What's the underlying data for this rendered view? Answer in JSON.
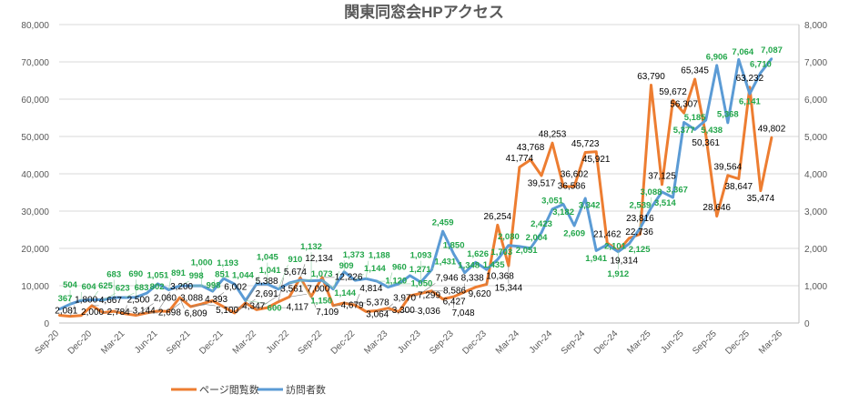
{
  "chart_data": {
    "type": "line",
    "title": "関東同窓会HPアクセス",
    "x": [
      "Sep-20",
      "Oct-20",
      "Nov-20",
      "Dec-20",
      "Jan-21",
      "Feb-21",
      "Mar-21",
      "Apr-21",
      "May-21",
      "Jun-21",
      "Jul-21",
      "Aug-21",
      "Sep-21",
      "Oct-21",
      "Nov-21",
      "Dec-21",
      "Jan-22",
      "Feb-22",
      "Mar-22",
      "Apr-22",
      "May-22",
      "Jun-22",
      "Jul-22",
      "Aug-22",
      "Sep-22",
      "Oct-22",
      "Nov-22",
      "Dec-22",
      "Jan-23",
      "Feb-23",
      "Mar-23",
      "Apr-23",
      "May-23",
      "Jun-23",
      "Jul-23",
      "Aug-23",
      "Sep-23",
      "Oct-23",
      "Nov-23",
      "Dec-23",
      "Jan-24",
      "Feb-24",
      "Mar-24",
      "Apr-24",
      "May-24",
      "Jun-24",
      "Jul-24",
      "Aug-24",
      "Sep-24",
      "Oct-24",
      "Nov-24",
      "Dec-24",
      "Jan-25",
      "Feb-25",
      "Mar-25",
      "Apr-25",
      "May-25",
      "Jun-25",
      "Jul-25",
      "Aug-25",
      "Sep-25",
      "Oct-25",
      "Nov-25",
      "Dec-25",
      "Jan-26",
      "Feb-26"
    ],
    "x_tick_labels": [
      "Sep-20",
      "Dec-20",
      "Mar-21",
      "Jun-21",
      "Sep-21",
      "Dec-21",
      "Mar-22",
      "Jun-22",
      "Sep-22",
      "Dec-22",
      "Mar-23",
      "Jun-23",
      "Sep-23",
      "Dec-23",
      "Mar-24",
      "Jun-24",
      "Sep-24",
      "Dec-24",
      "Mar-25",
      "Jun-25",
      "Sep-25",
      "Dec-25",
      "Mar-26"
    ],
    "y_left": {
      "range": [
        0,
        80000
      ],
      "ticks": [
        "0",
        "10,000",
        "20,000",
        "30,000",
        "40,000",
        "50,000",
        "60,000",
        "70,000",
        "80,000"
      ]
    },
    "y_right": {
      "range": [
        0,
        8000
      ],
      "ticks": [
        "0",
        "1,000",
        "2,000",
        "3,000",
        "4,000",
        "5,000",
        "6,000",
        "7,000",
        "8,000"
      ]
    },
    "grid": true,
    "legend_position": "bottom",
    "series": [
      {
        "name": "ページ閲覧数",
        "axis": "left",
        "color": "#ed7d31",
        "values": [
          2081,
          1800,
          2000,
          4667,
          2784,
          3144,
          2500,
          2080,
          2698,
          3200,
          3088,
          6809,
          4393,
          5100,
          6002,
          4347,
          2691,
          5388,
          3561,
          4117,
          5674,
          7000,
          12134,
          7109,
          12226,
          4679,
          5378,
          4814,
          3064,
          3300,
          3970,
          3036,
          7299,
          7946,
          8586,
          6427,
          7048,
          8338,
          9620,
          10368,
          26254,
          15344,
          41774,
          43768,
          39517,
          48253,
          36586,
          36602,
          45723,
          45921,
          21462,
          19314,
          22736,
          23816,
          63790,
          37125,
          59672,
          56307,
          65345,
          50361,
          28646,
          39564,
          38647,
          63232,
          35474,
          49802
        ]
      },
      {
        "name": "訪問者数",
        "axis": "right",
        "color": "#5b9bd5",
        "values": [
          367,
          504,
          604,
          625,
          623,
          683,
          683,
          690,
          802,
          1051,
          891,
          998,
          998,
          1000,
          851,
          1193,
          1044,
          600,
          1041,
          1045,
          910,
          1073,
          1150,
          1132,
          1144,
          909,
          1373,
          1144,
          1188,
          1120,
          960,
          1050,
          1271,
          1093,
          1431,
          2459,
          1850,
          1348,
          1626,
          1435,
          1703,
          2080,
          2051,
          2004,
          2423,
          3051,
          3182,
          2609,
          3342,
          1941,
          2101,
          1912,
          2125,
          2539,
          3088,
          3514,
          3367,
          5377,
          5185,
          5438,
          6906,
          5368,
          7064,
          6141,
          6710,
          7087
        ]
      }
    ]
  }
}
